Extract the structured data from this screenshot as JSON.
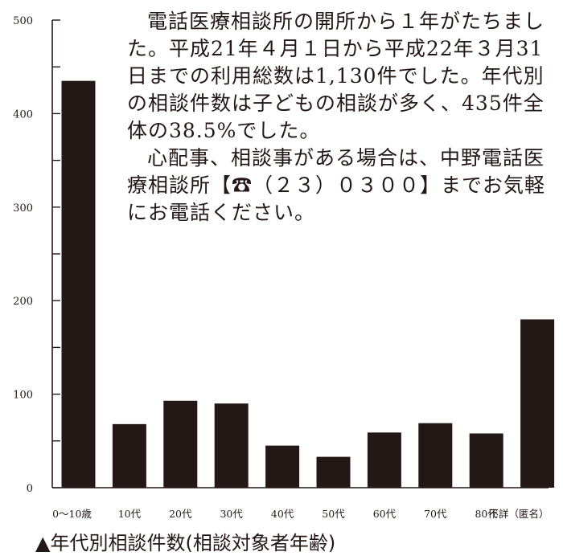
{
  "chart_data": {
    "type": "bar",
    "categories": [
      "0～10歳",
      "10代",
      "20代",
      "30代",
      "40代",
      "50代",
      "60代",
      "70代",
      "80代",
      "不詳（匿名）"
    ],
    "values": [
      435,
      68,
      93,
      90,
      45,
      33,
      59,
      69,
      58,
      180
    ],
    "ylim": [
      0,
      500
    ],
    "yticks": [
      "0",
      "100",
      "200",
      "300",
      "400",
      "500"
    ],
    "title": "▲年代別相談件数(相談対象者年齢)",
    "grid": false,
    "colors": {
      "bar": "#231815",
      "axis": "#231815"
    }
  },
  "note": {
    "paragraph1": "電話医療相談所の開所から１年がたちました。平成21年４月１日から平成22年３月31日までの利用総数は1,130件でした。年代別の相談件数は子どもの相談が多く、435件全体の38.5%でした。",
    "paragraph2": "心配事、相談事がある場合は、中野電話医療相談所【☎（２３）０３００】までお気軽にお電話ください。"
  }
}
